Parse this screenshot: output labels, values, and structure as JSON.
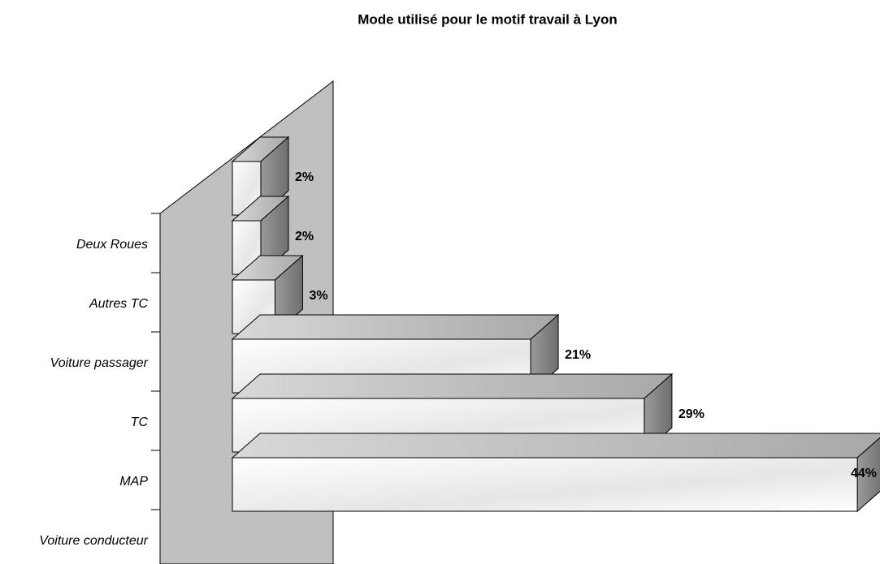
{
  "chart_data": {
    "type": "bar3d",
    "title": "Mode utilisé pour le motif travail à Lyon",
    "categories": [
      "Deux Roues",
      "Autres TC",
      "Voiture passager",
      "TC",
      "MAP",
      "Voiture conducteur"
    ],
    "values": [
      2,
      2,
      3,
      21,
      29,
      44
    ],
    "value_labels": [
      "2%",
      "2%",
      "3%",
      "21%",
      "29%",
      "44%"
    ]
  }
}
